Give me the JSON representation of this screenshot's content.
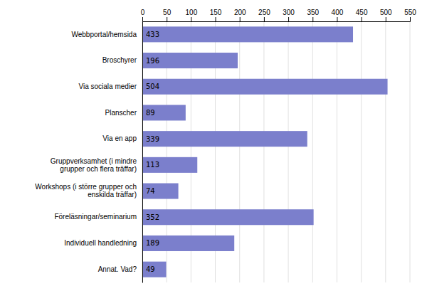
{
  "chart_data": {
    "type": "bar",
    "orientation": "horizontal",
    "categories": [
      "Annat. Vad?",
      "Individuell handledning",
      "Föreläsningar/seminarium",
      "Workshops (i större grupper och\nenskilda träffar)",
      "Gruppverksamhet (i mindre\ngrupper och flera träffar)",
      "Via en app",
      "Planscher",
      "Via sociala medier",
      "Broschyrer",
      "Webbportal/hemsida"
    ],
    "values": [
      49,
      189,
      352,
      74,
      113,
      339,
      89,
      504,
      196,
      433
    ],
    "color": "#7b7fcc",
    "xlim": [
      0,
      550
    ],
    "xticks": [
      0,
      50,
      100,
      150,
      200,
      250,
      300,
      350,
      400,
      450,
      500,
      550
    ],
    "grid": true,
    "data_labels": true
  }
}
